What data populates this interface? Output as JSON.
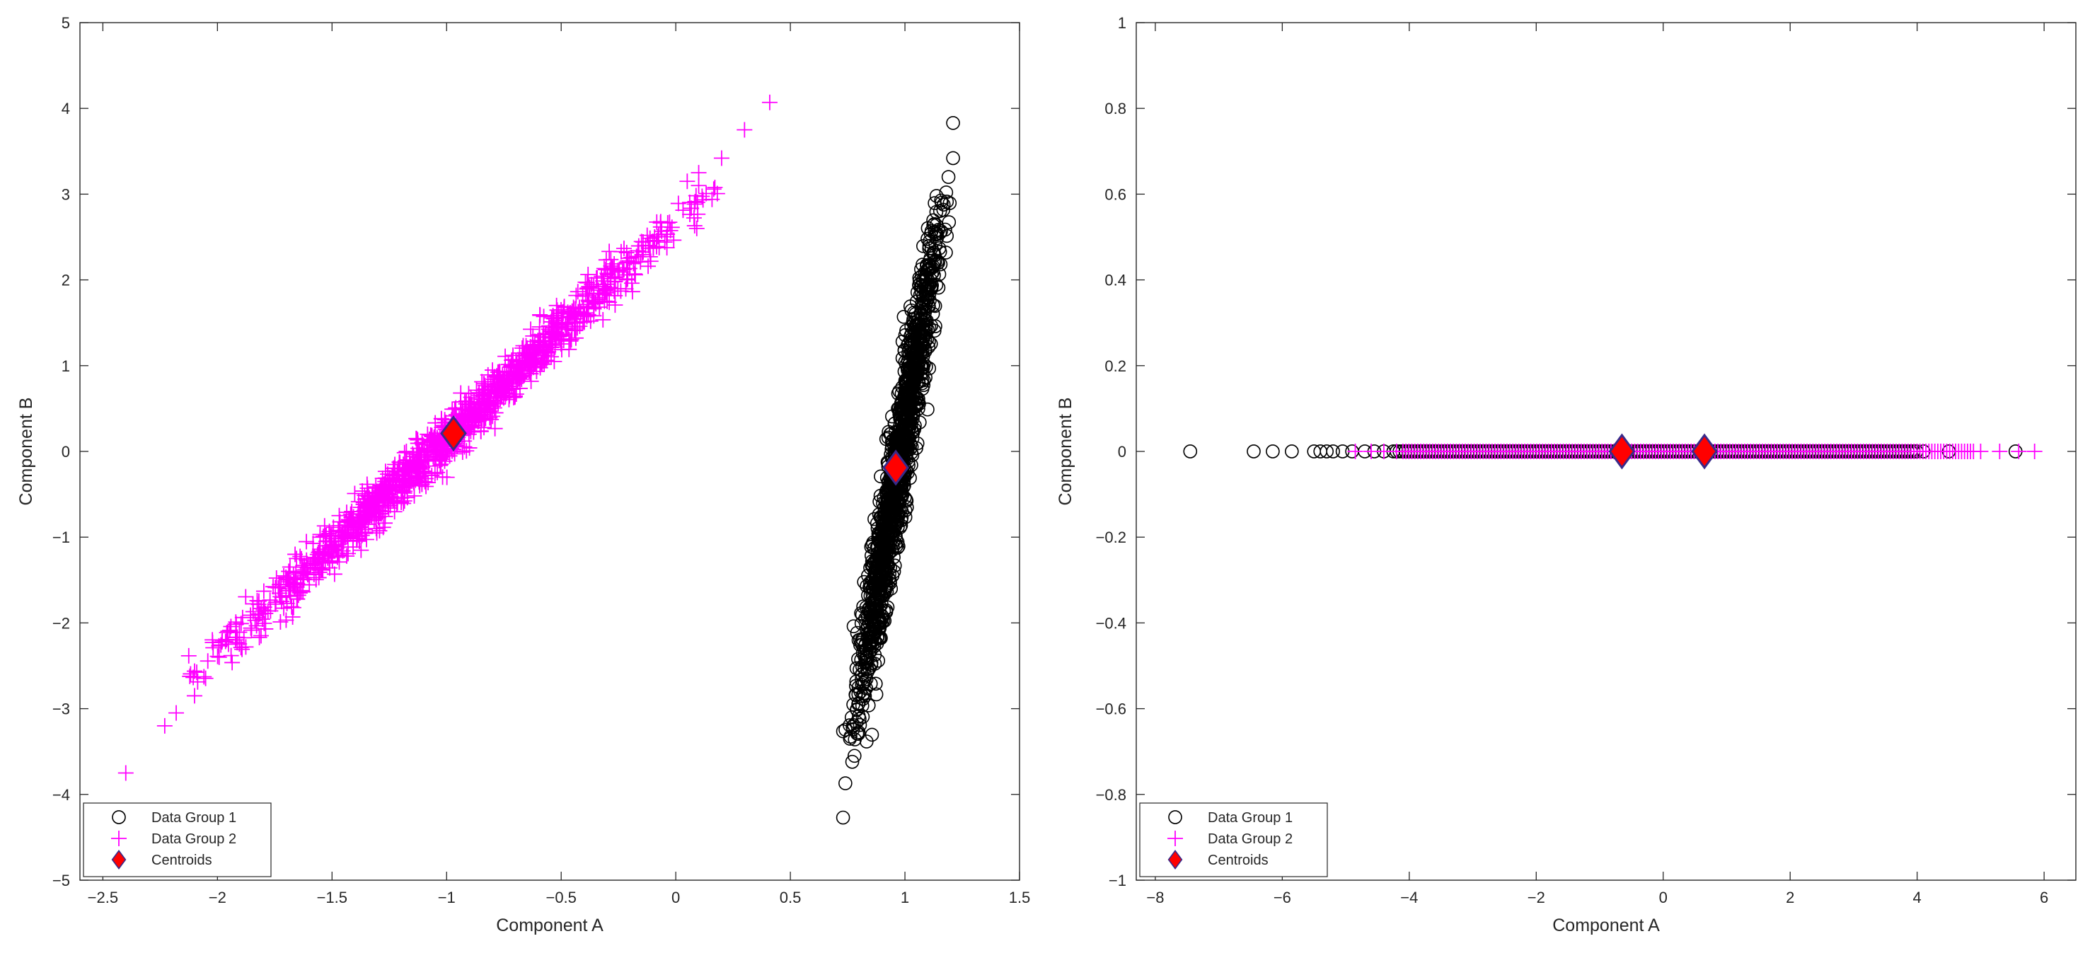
{
  "chart_data": [
    {
      "type": "scatter",
      "title": "",
      "xlabel": "Component A",
      "ylabel": "Component B",
      "xlim": [
        -2.6,
        1.5
      ],
      "ylim": [
        -5,
        5
      ],
      "xticks": [
        -2.5,
        -2,
        -1.5,
        -1,
        -0.5,
        0,
        0.5,
        1,
        1.5
      ],
      "yticks": [
        -5,
        -4,
        -3,
        -2,
        -1,
        0,
        1,
        2,
        3,
        4,
        5
      ],
      "grid": false,
      "legend_position": "bottom-left",
      "series": [
        {
          "name": "Data Group 1",
          "marker": "circle",
          "color": "#000000",
          "cluster": {
            "center": [
              0.97,
              -0.2
            ],
            "direction": [
              0.06,
              1.0
            ],
            "half_length": 3.2,
            "width": 0.025,
            "count": 1300
          },
          "extremes": [
            [
              0.73,
              -4.27
            ],
            [
              0.74,
              -3.87
            ],
            [
              0.77,
              -3.62
            ],
            [
              0.78,
              -3.55
            ],
            [
              0.76,
              -3.35
            ],
            [
              1.21,
              3.83
            ],
            [
              1.21,
              3.42
            ],
            [
              1.19,
              3.2
            ],
            [
              1.18,
              3.02
            ],
            [
              1.16,
              2.9
            ]
          ]
        },
        {
          "name": "Data Group 2",
          "marker": "plus",
          "color": "#ff00ff",
          "cluster": {
            "center": [
              -0.98,
              0.2
            ],
            "direction": [
              1.0,
              2.55
            ],
            "half_length": 3.1,
            "width": 0.05,
            "count": 1400
          },
          "extremes": [
            [
              -2.4,
              -3.75
            ],
            [
              -2.23,
              -3.2
            ],
            [
              -2.18,
              -3.05
            ],
            [
              -2.1,
              -2.85
            ],
            [
              0.41,
              4.07
            ],
            [
              0.3,
              3.75
            ],
            [
              0.2,
              3.42
            ],
            [
              0.1,
              3.25
            ],
            [
              0.05,
              3.15
            ],
            [
              0.1,
              3.1
            ]
          ]
        },
        {
          "name": "Centroids",
          "marker": "diamond",
          "color": "#ff0000",
          "edge_color": "#3a2a8a",
          "points": [
            [
              -0.97,
              0.21
            ],
            [
              0.96,
              -0.19
            ]
          ]
        }
      ]
    },
    {
      "type": "scatter",
      "title": "",
      "xlabel": "Component A",
      "ylabel": "Component B",
      "xlim": [
        -8.3,
        6.5
      ],
      "ylim": [
        -1,
        1
      ],
      "xticks": [
        -8,
        -6,
        -4,
        -2,
        0,
        2,
        4,
        6
      ],
      "yticks": [
        -1,
        -0.8,
        -0.6,
        -0.4,
        -0.2,
        0,
        0.2,
        0.4,
        0.6,
        0.8,
        1
      ],
      "grid": false,
      "legend_position": "bottom-left",
      "series": [
        {
          "name": "Data Group 1",
          "marker": "circle",
          "color": "#000000",
          "points": [
            [
              -7.45,
              0
            ],
            [
              -6.45,
              0
            ],
            [
              -6.15,
              0
            ],
            [
              -5.85,
              0
            ],
            [
              -5.5,
              0
            ],
            [
              -5.4,
              0
            ],
            [
              -5.3,
              0
            ],
            [
              -5.2,
              0
            ],
            [
              -5.05,
              0
            ],
            [
              -4.9,
              0
            ],
            [
              -4.7,
              0
            ],
            [
              -4.55,
              0
            ],
            [
              -4.4,
              0
            ],
            [
              -4.25,
              0
            ]
          ],
          "dense_range": [
            -4.2,
            4.0
          ],
          "tail_points": [
            4.1,
            4.5,
            5.55
          ]
        },
        {
          "name": "Data Group 2",
          "marker": "plus",
          "color": "#ff00ff",
          "points": [
            [
              -4.85,
              0
            ],
            [
              -4.6,
              0
            ],
            [
              -4.4,
              0
            ],
            [
              -4.2,
              0
            ],
            [
              5.0,
              0
            ],
            [
              5.3,
              0
            ],
            [
              5.6,
              0
            ],
            [
              5.85,
              0
            ]
          ],
          "dense_range": [
            -4.1,
            4.9
          ]
        },
        {
          "name": "Centroids",
          "marker": "diamond",
          "color": "#ff0000",
          "edge_color": "#3a2a8a",
          "points": [
            [
              -0.65,
              0
            ],
            [
              0.65,
              0
            ]
          ]
        }
      ]
    }
  ]
}
